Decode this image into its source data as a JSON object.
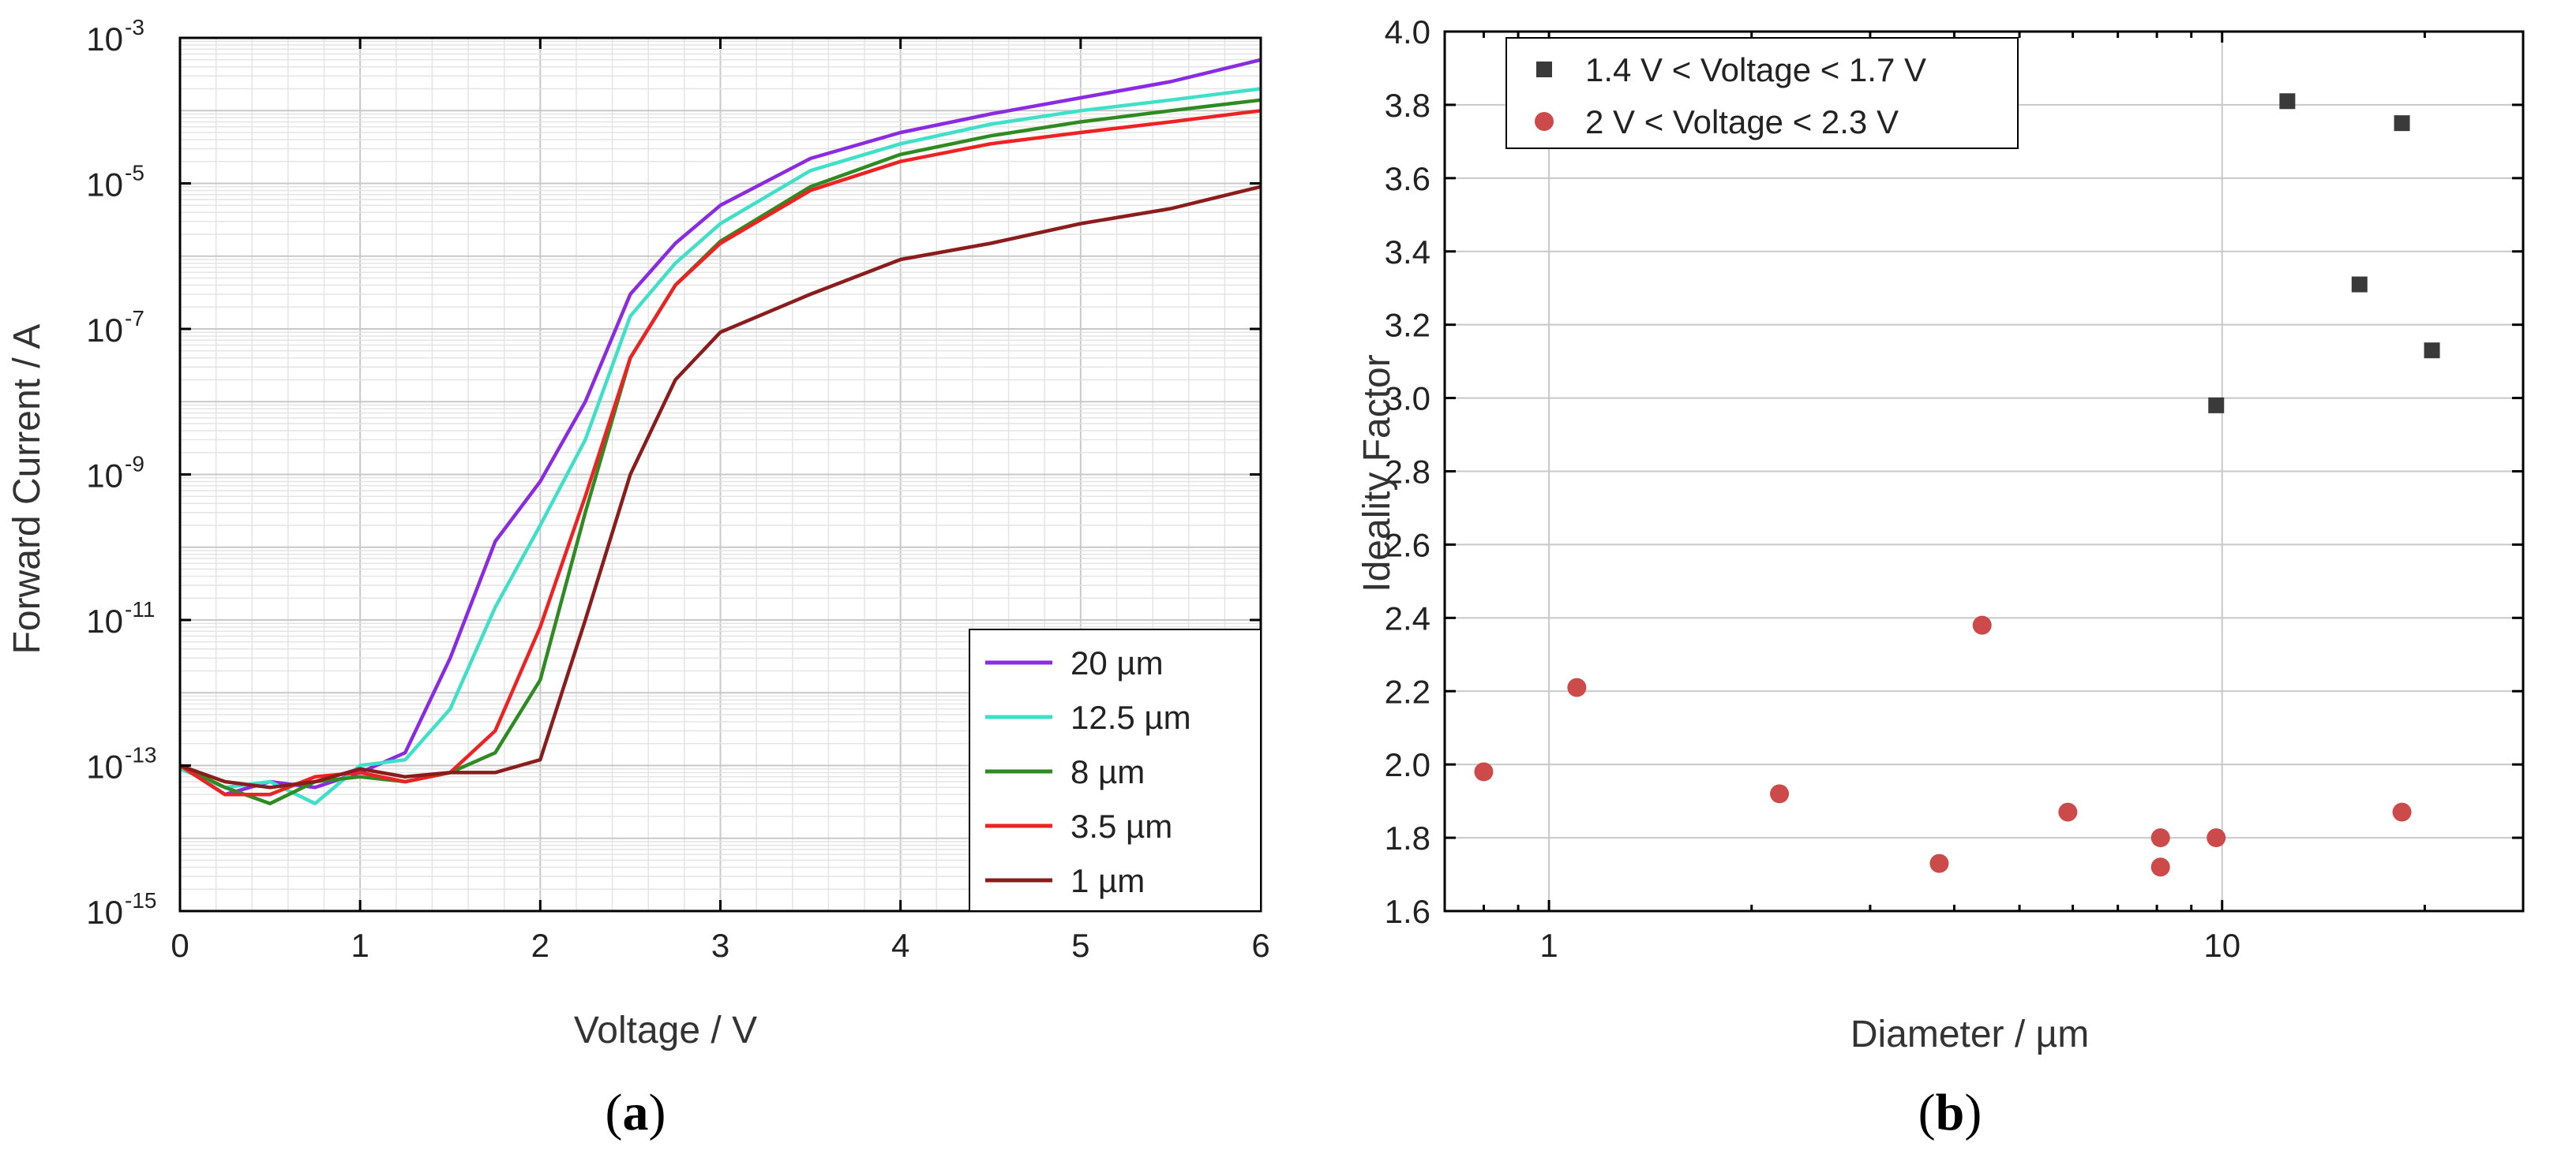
{
  "chart_data": [
    {
      "type": "line",
      "panel_label": "a",
      "xlabel": "Voltage / V",
      "ylabel": "Forward Current / A",
      "xlim": [
        0,
        6
      ],
      "ylim": [
        1e-15,
        0.001
      ],
      "yscale": "log",
      "grid": true,
      "legend_position": "bottom-right",
      "x_ticks": [
        "0",
        "1",
        "2",
        "3",
        "4",
        "5",
        "6"
      ],
      "y_ticks": [
        {
          "base": "10",
          "exp": "-15"
        },
        {
          "base": "10",
          "exp": "-13"
        },
        {
          "base": "10",
          "exp": "-11"
        },
        {
          "base": "10",
          "exp": "-9"
        },
        {
          "base": "10",
          "exp": "-7"
        },
        {
          "base": "10",
          "exp": "-5"
        },
        {
          "base": "10",
          "exp": "-3"
        }
      ],
      "x": [
        0,
        0.25,
        0.5,
        0.75,
        1.0,
        1.25,
        1.5,
        1.75,
        2.0,
        2.25,
        2.5,
        2.75,
        3.0,
        3.5,
        4.0,
        4.5,
        5.0,
        5.5,
        6.0
      ],
      "series": [
        {
          "name": "20 µm",
          "color": "#8a2be2",
          "values": [
            1e-13,
            4e-14,
            6e-14,
            5e-14,
            8e-14,
            1.5e-13,
            3e-12,
            1.2e-10,
            8e-10,
            1e-08,
            3e-07,
            1.5e-06,
            5e-06,
            2.2e-05,
            5e-05,
            9e-05,
            0.00015,
            0.00025,
            0.0005
          ]
        },
        {
          "name": "12.5 µm",
          "color": "#40e0c8",
          "values": [
            9e-14,
            5e-14,
            6e-14,
            3e-14,
            1e-13,
            1.2e-13,
            6e-13,
            1.5e-11,
            2e-10,
            3e-09,
            1.5e-07,
            8e-07,
            2.8e-06,
            1.5e-05,
            3.5e-05,
            6.5e-05,
            0.0001,
            0.00014,
            0.0002
          ]
        },
        {
          "name": "8 µm",
          "color": "#2e8b22",
          "values": [
            1e-13,
            5e-14,
            3e-14,
            6e-14,
            7e-14,
            6e-14,
            8e-14,
            1.5e-13,
            1.5e-12,
            3e-10,
            4e-08,
            4e-07,
            1.6e-06,
            9e-06,
            2.5e-05,
            4.5e-05,
            7e-05,
            0.0001,
            0.00014
          ]
        },
        {
          "name": "3.5 µm",
          "color": "#ee2222",
          "values": [
            1e-13,
            4e-14,
            4e-14,
            7e-14,
            8e-14,
            6e-14,
            8e-14,
            3e-13,
            8e-12,
            5e-10,
            4e-08,
            4e-07,
            1.5e-06,
            8e-06,
            2e-05,
            3.5e-05,
            5e-05,
            7e-05,
            0.0001
          ]
        },
        {
          "name": "1 µm",
          "color": "#8b1c1c",
          "values": [
            1e-13,
            6e-14,
            5e-14,
            6e-14,
            9e-14,
            7e-14,
            8e-14,
            8e-14,
            1.2e-13,
            1e-11,
            1e-09,
            2e-08,
            9e-08,
            3e-07,
            9e-07,
            1.5e-06,
            2.8e-06,
            4.5e-06,
            9e-06
          ]
        }
      ]
    },
    {
      "type": "scatter",
      "panel_label": "b",
      "xlabel": "Diameter / µm",
      "ylabel": "Ideality Factor",
      "xscale": "log",
      "xlim": [
        0.7,
        28
      ],
      "ylim": [
        1.6,
        4.0
      ],
      "grid": true,
      "legend_position": "top-left",
      "x_ticks": [
        "1",
        "10"
      ],
      "y_ticks": [
        "1.6",
        "1.8",
        "2.0",
        "2.2",
        "2.4",
        "2.6",
        "2.8",
        "3.0",
        "3.2",
        "3.4",
        "3.6",
        "3.8",
        "4.0"
      ],
      "series": [
        {
          "name": "1.4 V < Voltage < 1.7 V",
          "marker": "square",
          "color": "#3a3a3a",
          "points": [
            [
              9.8,
              2.98
            ],
            [
              12.5,
              3.81
            ],
            [
              16.0,
              3.31
            ],
            [
              18.5,
              3.75
            ],
            [
              20.5,
              3.13
            ]
          ]
        },
        {
          "name": "2 V < Voltage < 2.3 V",
          "marker": "circle",
          "color": "#cd4a4a",
          "points": [
            [
              0.8,
              1.98
            ],
            [
              1.1,
              2.21
            ],
            [
              2.2,
              1.92
            ],
            [
              3.8,
              1.73
            ],
            [
              4.4,
              2.38
            ],
            [
              5.9,
              1.87
            ],
            [
              8.1,
              1.72
            ],
            [
              8.1,
              1.8
            ],
            [
              9.8,
              1.8
            ],
            [
              18.5,
              1.87
            ]
          ]
        }
      ]
    }
  ]
}
